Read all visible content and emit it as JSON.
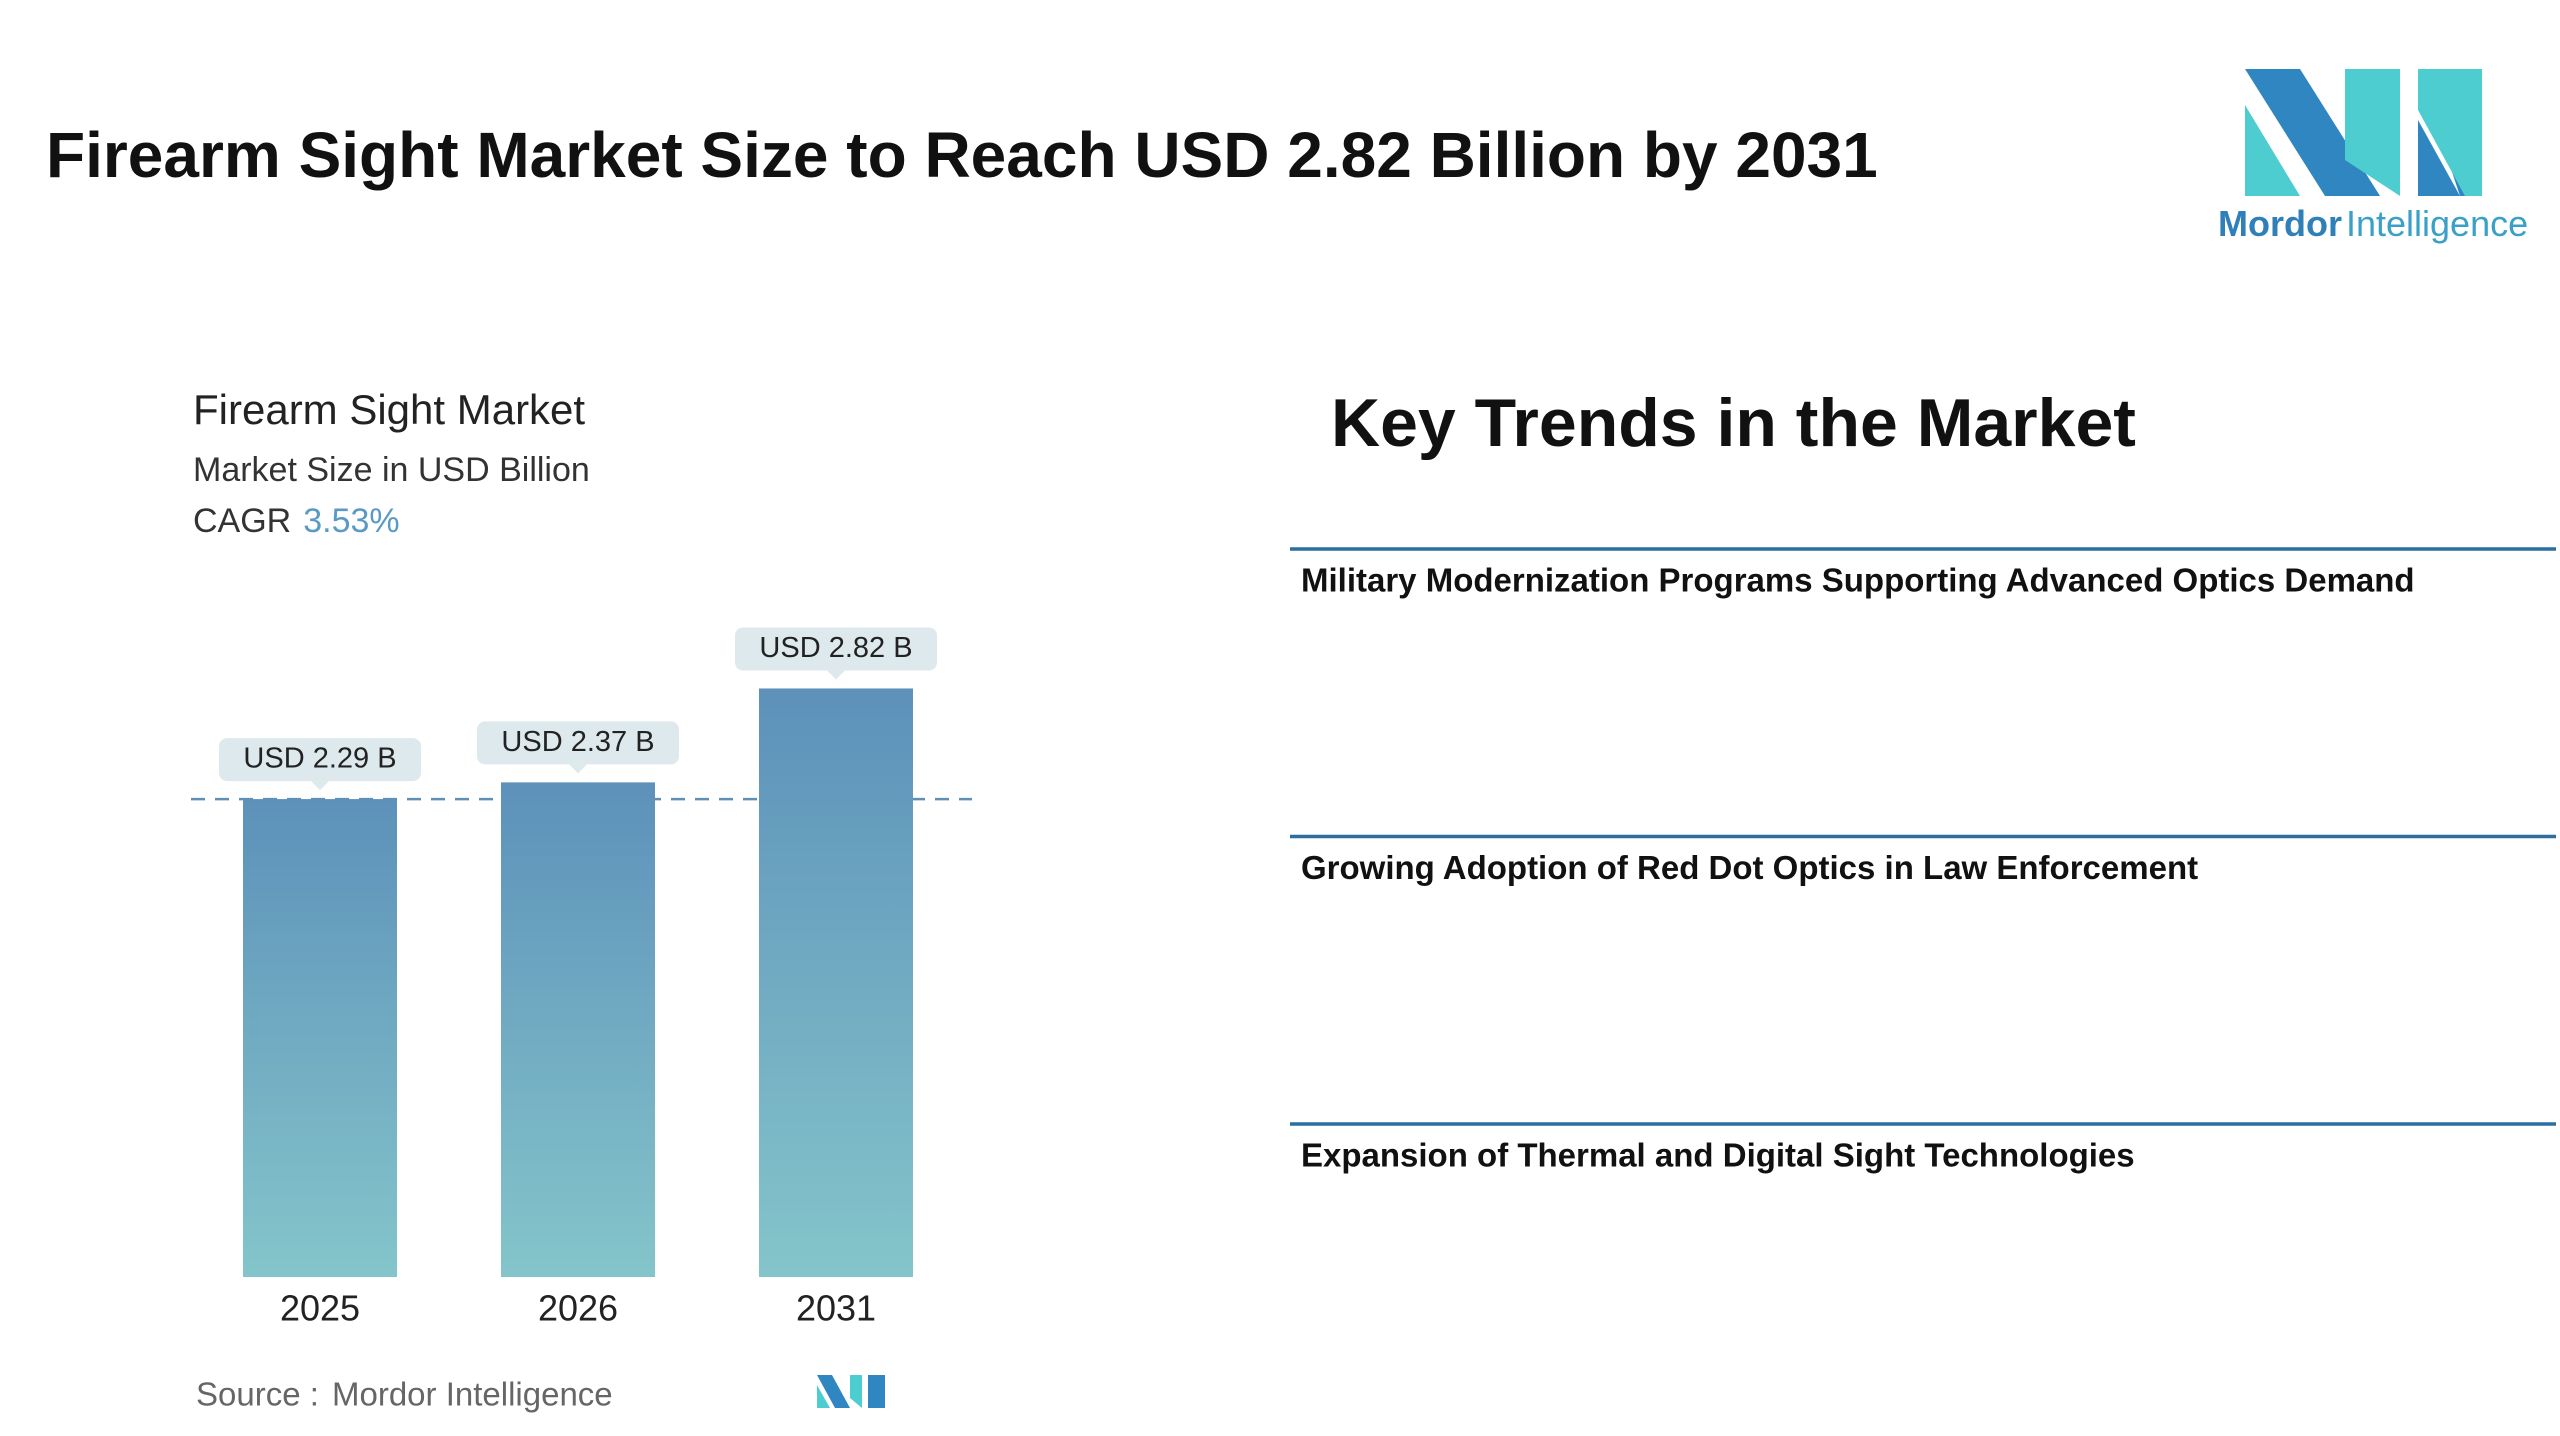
{
  "header": {
    "title": "Firearm Sight Market Size to Reach USD 2.82 Billion by 2031",
    "logo_bold": "Mordor",
    "logo_light": "Intelligence"
  },
  "chart_data": {
    "type": "bar",
    "title": "Firearm Sight Market",
    "subtitle": "Market Size in USD Billion",
    "cagr_label": "CAGR",
    "cagr_value": "3.53%",
    "categories": [
      "2025",
      "2026",
      "2031"
    ],
    "values": [
      2.29,
      2.37,
      2.82
    ],
    "value_labels": [
      "USD 2.29 B",
      "USD 2.37 B",
      "USD 2.82 B"
    ],
    "source_label": "Source :",
    "source": "Mordor Intelligence"
  },
  "trends": {
    "heading": "Key Trends in the Market",
    "items": [
      "Military Modernization Programs Supporting Advanced Optics Demand",
      "Growing Adoption of Red Dot Optics in Law Enforcement",
      "Expansion of Thermal and Digital Sight Technologies"
    ]
  }
}
